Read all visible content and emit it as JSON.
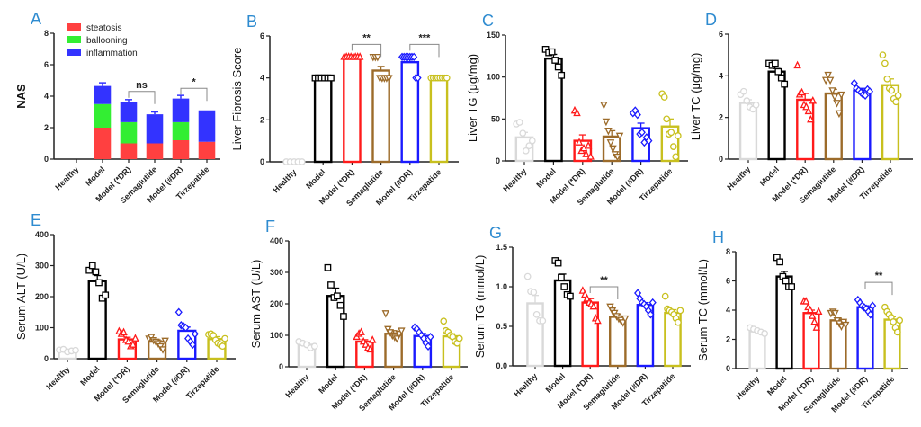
{
  "categories": [
    "Healthy",
    "Model",
    "Model (*DR)",
    "Semaglutide",
    "Model (#DR)",
    "Tirzepatide"
  ],
  "group_colors": [
    "#d9d9d9",
    "#000000",
    "#ff1a1a",
    "#9c6b2a",
    "#1a1aff",
    "#c8c01e"
  ],
  "group_markers": [
    "circle",
    "square",
    "triangle-up",
    "triangle-down",
    "diamond",
    "circle"
  ],
  "chart_data": [
    {
      "panel": "A",
      "type": "stacked-bar",
      "ylabel": "NAS",
      "ylim": [
        0,
        8
      ],
      "ticks": [
        0,
        2,
        4,
        6,
        8
      ],
      "legend": [
        {
          "name": "steatosis",
          "color": "#ff4040"
        },
        {
          "name": "ballooning",
          "color": "#33ee33"
        },
        {
          "name": "inflammation",
          "color": "#3333ff"
        }
      ],
      "series": [
        {
          "name": "steatosis",
          "values": [
            0,
            2,
            1,
            1,
            1.2,
            1.1
          ],
          "errors": [
            0,
            0,
            0,
            0.18,
            0.2,
            0.12
          ]
        },
        {
          "name": "ballooning",
          "values": [
            0,
            1.5,
            1.35,
            0,
            1.15,
            0
          ],
          "errors": [
            0,
            0.2,
            0.25,
            0,
            0.15,
            0
          ]
        },
        {
          "name": "inflammation",
          "values": [
            0,
            1.15,
            1.25,
            1.85,
            1.5,
            2.0
          ],
          "errors": [
            0,
            0.2,
            0.18,
            0.15,
            0.2,
            0
          ]
        }
      ],
      "sig": [
        {
          "from": 2,
          "to": 3,
          "y": 4.3,
          "label": "ns"
        },
        {
          "from": 4,
          "to": 5,
          "y": 4.5,
          "label": "*"
        }
      ]
    },
    {
      "panel": "B",
      "type": "bar",
      "ylabel": "Liver Fibrosis Score",
      "ylim": [
        0,
        6
      ],
      "ticks": [
        0,
        2,
        4,
        6
      ],
      "means": [
        0,
        4,
        5,
        4.35,
        4.75,
        4
      ],
      "errors": [
        0,
        0,
        0,
        0.2,
        0.15,
        0
      ],
      "points": [
        [
          0,
          0,
          0,
          0,
          0
        ],
        [
          4,
          4,
          4,
          4,
          4,
          4
        ],
        [
          5,
          5,
          5,
          5,
          5,
          5,
          5,
          5
        ],
        [
          5,
          5,
          5,
          4,
          4,
          4,
          4,
          4
        ],
        [
          5,
          5,
          5,
          5,
          5,
          5,
          5,
          4,
          4
        ],
        [
          4,
          4,
          4,
          4,
          4,
          4,
          4,
          4
        ]
      ],
      "sig": [
        {
          "from": 2,
          "to": 3,
          "y": 5.6,
          "label": "**"
        },
        {
          "from": 4,
          "to": 5,
          "y": 5.6,
          "label": "***"
        }
      ]
    },
    {
      "panel": "C",
      "type": "bar",
      "ylabel": "Liver TG (μg/mg)",
      "ylim": [
        0,
        150
      ],
      "ticks": [
        0,
        50,
        100,
        150
      ],
      "means": [
        28,
        122,
        24,
        29,
        39,
        41
      ],
      "errors": [
        6,
        5,
        7,
        7,
        6,
        9
      ],
      "points": [
        [
          44,
          46,
          33,
          12,
          18,
          24
        ],
        [
          133,
          129,
          130,
          120,
          112,
          102
        ],
        [
          60,
          57,
          22,
          12,
          15,
          8,
          18,
          5
        ],
        [
          67,
          47,
          36,
          22,
          15,
          8,
          5,
          30
        ],
        [
          57,
          60,
          55,
          32,
          34,
          22,
          28,
          24
        ],
        [
          80,
          76,
          50,
          32,
          34,
          17,
          5,
          30
        ]
      ],
      "sig": []
    },
    {
      "panel": "D",
      "type": "bar",
      "ylabel": "Liver TC (μg/mg)",
      "ylim": [
        0,
        6
      ],
      "ticks": [
        0,
        2,
        4,
        6
      ],
      "means": [
        2.7,
        4.2,
        2.85,
        3.15,
        3.3,
        3.55
      ],
      "errors": [
        0.15,
        0.15,
        0.3,
        0.2,
        0.1,
        0.3
      ],
      "points": [
        [
          3.1,
          3.25,
          2.8,
          2.5,
          2.4,
          2.6
        ],
        [
          4.6,
          4.5,
          4.6,
          4.2,
          3.9,
          3.6
        ],
        [
          4.5,
          3.1,
          3.2,
          2.6,
          2.5,
          2.3,
          1.9,
          2.8
        ],
        [
          3.8,
          4.05,
          3.8,
          3.3,
          3.0,
          2.7,
          2.2,
          3.1
        ],
        [
          3.65,
          3.4,
          3.3,
          3.2,
          3.1,
          3.05,
          3.35,
          3.25
        ],
        [
          5.0,
          4.6,
          3.85,
          3.4,
          3.3,
          2.9,
          2.75,
          3.05
        ]
      ],
      "sig": []
    },
    {
      "panel": "E",
      "type": "bar",
      "ylabel": "Serum ALT (U/L)",
      "ylim": [
        0,
        400
      ],
      "ticks": [
        0,
        100,
        200,
        300,
        400
      ],
      "means": [
        25,
        250,
        62,
        55,
        90,
        63
      ],
      "errors": [
        3,
        18,
        7,
        6,
        12,
        8
      ],
      "points": [
        [
          28,
          30,
          22,
          25,
          27
        ],
        [
          285,
          300,
          280,
          245,
          195,
          205
        ],
        [
          88,
          80,
          85,
          60,
          55,
          40,
          45,
          65
        ],
        [
          65,
          70,
          60,
          55,
          50,
          40,
          30,
          58
        ],
        [
          150,
          108,
          105,
          100,
          65,
          55,
          45,
          80
        ],
        [
          78,
          80,
          75,
          60,
          50,
          45,
          40,
          65
        ]
      ],
      "sig": []
    },
    {
      "panel": "F",
      "type": "bar",
      "ylabel": "Serum AST (U/L)",
      "ylim": [
        0,
        400
      ],
      "ticks": [
        0,
        100,
        200,
        300,
        400
      ],
      "means": [
        70,
        225,
        80,
        105,
        98,
        97
      ],
      "errors": [
        5,
        25,
        6,
        10,
        8,
        8
      ],
      "points": [
        [
          80,
          75,
          70,
          60,
          65
        ],
        [
          315,
          260,
          220,
          225,
          195,
          160
        ],
        [
          95,
          105,
          110,
          80,
          70,
          60,
          55,
          85
        ],
        [
          170,
          120,
          110,
          100,
          95,
          90,
          105,
          115
        ],
        [
          125,
          120,
          110,
          100,
          90,
          75,
          65,
          95
        ],
        [
          145,
          115,
          110,
          100,
          95,
          80,
          75,
          90
        ]
      ],
      "sig": []
    },
    {
      "panel": "G",
      "type": "bar",
      "ylabel": "Serum TG (mmol/L)",
      "ylim": [
        0,
        1.5
      ],
      "ticks": [
        "0.0",
        "0.5",
        "1.0",
        "1.5"
      ],
      "means": [
        0.79,
        1.08,
        0.8,
        0.62,
        0.77,
        0.67
      ],
      "errors": [
        0.1,
        0.08,
        0.05,
        0.03,
        0.03,
        0.04
      ],
      "points": [
        [
          1.13,
          0.94,
          0.93,
          0.65,
          0.57,
          0.57
        ],
        [
          1.33,
          1.3,
          1.12,
          1.0,
          0.9,
          0.88
        ],
        [
          0.95,
          0.9,
          0.85,
          0.8,
          0.78,
          0.75,
          0.6,
          0.57
        ],
        [
          0.75,
          0.7,
          0.67,
          0.63,
          0.6,
          0.58,
          0.55,
          0.6
        ],
        [
          0.92,
          0.85,
          0.8,
          0.78,
          0.75,
          0.7,
          0.65,
          0.8
        ],
        [
          0.88,
          0.72,
          0.7,
          0.68,
          0.65,
          0.6,
          0.55,
          0.7
        ]
      ],
      "sig": [
        {
          "from": 2,
          "to": 3,
          "y": 1.0,
          "label": "**"
        }
      ]
    },
    {
      "panel": "H",
      "type": "bar",
      "ylabel": "Serum TC (mmol/L)",
      "ylim": [
        0,
        8
      ],
      "ticks": [
        0,
        2,
        4,
        6,
        8
      ],
      "means": [
        2.55,
        6.3,
        3.8,
        3.3,
        4.2,
        3.35
      ],
      "errors": [
        0.1,
        0.35,
        0.2,
        0.15,
        0.1,
        0.2
      ],
      "points": [
        [
          2.8,
          2.7,
          2.6,
          2.5,
          2.4
        ],
        [
          7.6,
          7.3,
          6.3,
          6.0,
          5.6,
          5.6
        ],
        [
          4.6,
          4.6,
          4.2,
          4.0,
          3.6,
          3.2,
          2.8,
          3.9
        ],
        [
          3.8,
          3.9,
          3.8,
          3.3,
          3.1,
          2.9,
          3.2,
          3.0
        ],
        [
          4.7,
          4.5,
          4.3,
          4.2,
          4.1,
          3.9,
          3.7,
          4.3
        ],
        [
          4.2,
          3.9,
          3.7,
          3.5,
          3.2,
          2.8,
          2.5,
          3.3
        ]
      ],
      "sig": [
        {
          "from": 4,
          "to": 5,
          "y": 5.9,
          "label": "**"
        }
      ]
    }
  ]
}
